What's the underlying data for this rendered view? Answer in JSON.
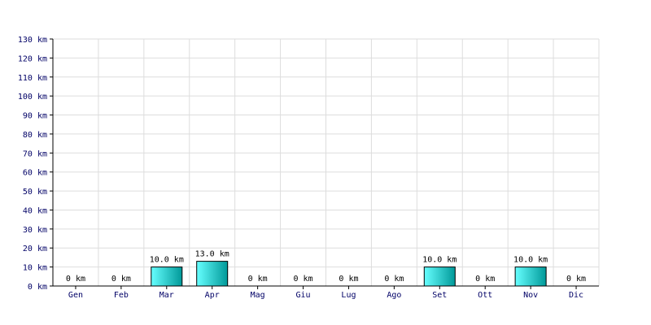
{
  "chart_data": {
    "type": "bar",
    "categories": [
      "Gen",
      "Feb",
      "Mar",
      "Apr",
      "Mag",
      "Giu",
      "Lug",
      "Ago",
      "Set",
      "Ott",
      "Nov",
      "Dic"
    ],
    "values": [
      0,
      0,
      10.0,
      13.0,
      0,
      0,
      0,
      0,
      10.0,
      0,
      10.0,
      0
    ],
    "value_labels": [
      "0 km",
      "0 km",
      "10.0 km",
      "13.0 km",
      "0 km",
      "0 km",
      "0 km",
      "0 km",
      "10.0 km",
      "0 km",
      "10.0 km",
      "0 km"
    ],
    "y_tick_values": [
      0,
      10,
      20,
      30,
      40,
      50,
      60,
      70,
      80,
      90,
      100,
      110,
      120,
      130
    ],
    "y_tick_labels": [
      "0 km",
      "10 km",
      "20 km",
      "30 km",
      "40 km",
      "50 km",
      "60 km",
      "70 km",
      "80 km",
      "90 km",
      "100 km",
      "110 km",
      "120 km",
      "130 km"
    ],
    "ylim": [
      0,
      130
    ],
    "grid": true,
    "colors": {
      "bar_light": "#66ffff",
      "bar_dark": "#009999",
      "bar_border": "#000000",
      "grid": "#dddddd",
      "axis": "#000000",
      "tick_text": "#000066"
    }
  }
}
